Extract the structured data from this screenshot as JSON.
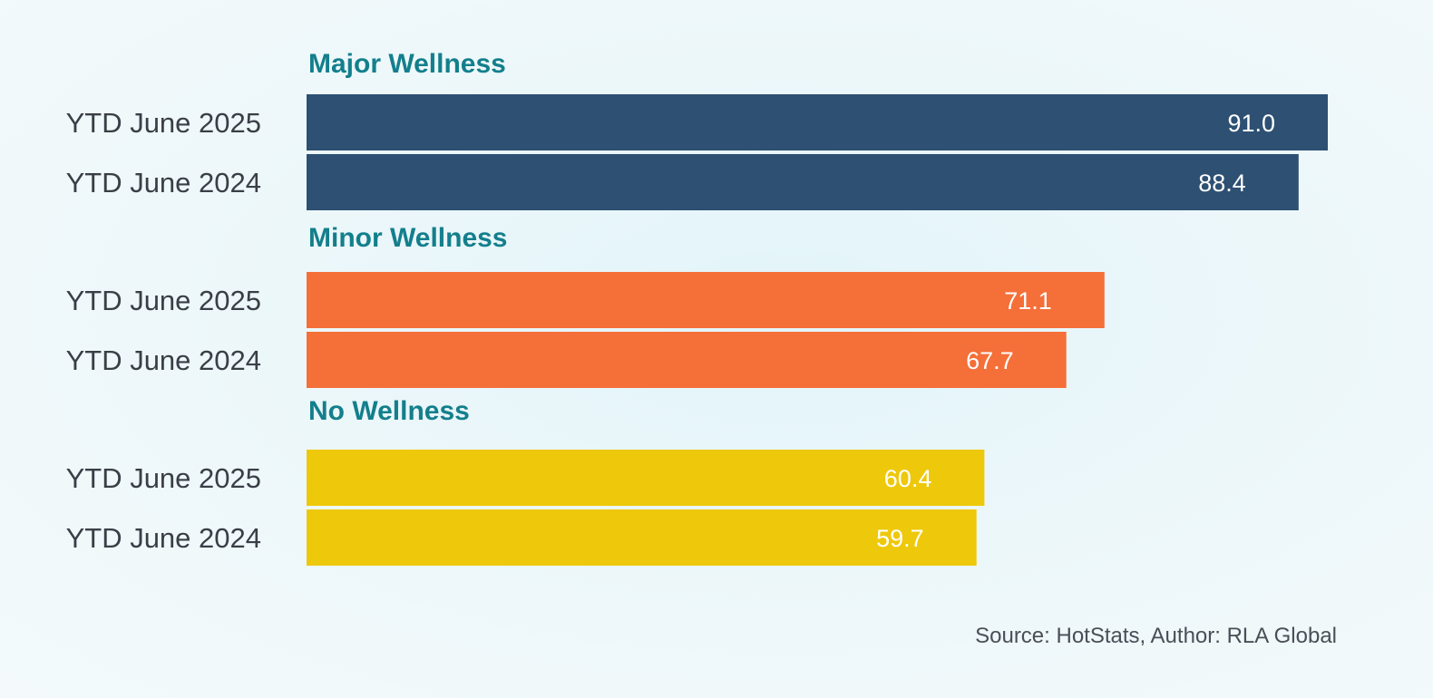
{
  "chart_data": {
    "type": "bar",
    "orientation": "horizontal",
    "title": "",
    "xlabel": "",
    "ylabel": "",
    "xlim": [
      0,
      91.0
    ],
    "grid": false,
    "groups": [
      {
        "name": "Major Wellness",
        "color": "#2d5073",
        "rows": [
          {
            "label": "YTD June 2025",
            "value": 91.0,
            "value_label": "91.0"
          },
          {
            "label": "YTD June 2024",
            "value": 88.4,
            "value_label": "88.4"
          }
        ]
      },
      {
        "name": "Minor Wellness",
        "color": "#f56f38",
        "rows": [
          {
            "label": "YTD June 2025",
            "value": 71.1,
            "value_label": "71.1"
          },
          {
            "label": "YTD June 2024",
            "value": 67.7,
            "value_label": "67.7"
          }
        ]
      },
      {
        "name": "No Wellness",
        "color": "#eec80b",
        "rows": [
          {
            "label": "YTD June 2025",
            "value": 60.4,
            "value_label": "60.4"
          },
          {
            "label": "YTD June 2024",
            "value": 59.7,
            "value_label": "59.7"
          }
        ]
      }
    ],
    "group_title_color": "#137f8c"
  },
  "footer": {
    "source": "Source: HotStats, Author: RLA Global"
  }
}
